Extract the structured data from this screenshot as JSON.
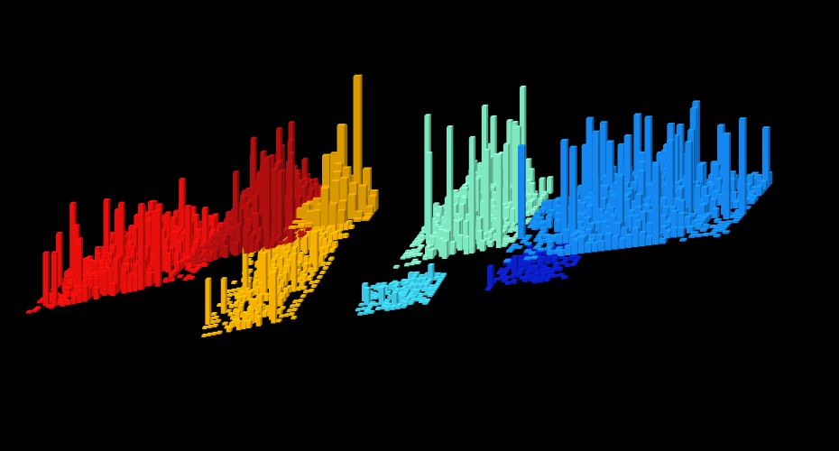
{
  "chart_data": {
    "type": "3d-bar",
    "title": "",
    "xlabel": "",
    "ylabel": "",
    "zlabel": "",
    "axes_visible": false,
    "grid": false,
    "background": "#000000",
    "view": "oblique",
    "clusters": [
      {
        "color": "#e8100c",
        "rows": 18,
        "cols": 30,
        "peak": 95,
        "mean_level": 45
      },
      {
        "color": "#b00f10",
        "rows": 20,
        "cols": 22,
        "peak": 115,
        "mean_level": 60
      },
      {
        "color": "#f5b000",
        "rows": 22,
        "cols": 20,
        "peak": 60,
        "mean_level": 20
      },
      {
        "color": "#d99a00",
        "rows": 8,
        "cols": 10,
        "peak": 210,
        "mean_level": 70
      },
      {
        "color": "#7ee8c0",
        "rows": 18,
        "cols": 22,
        "peak": 140,
        "mean_level": 50
      },
      {
        "color": "#3cc8e6",
        "rows": 12,
        "cols": 14,
        "peak": 20,
        "mean_level": 8
      },
      {
        "color": "#1488f0",
        "rows": 20,
        "cols": 34,
        "peak": 110,
        "mean_level": 45
      },
      {
        "color": "#0a1ec8",
        "rows": 10,
        "cols": 14,
        "peak": 25,
        "mean_level": 10
      }
    ]
  }
}
